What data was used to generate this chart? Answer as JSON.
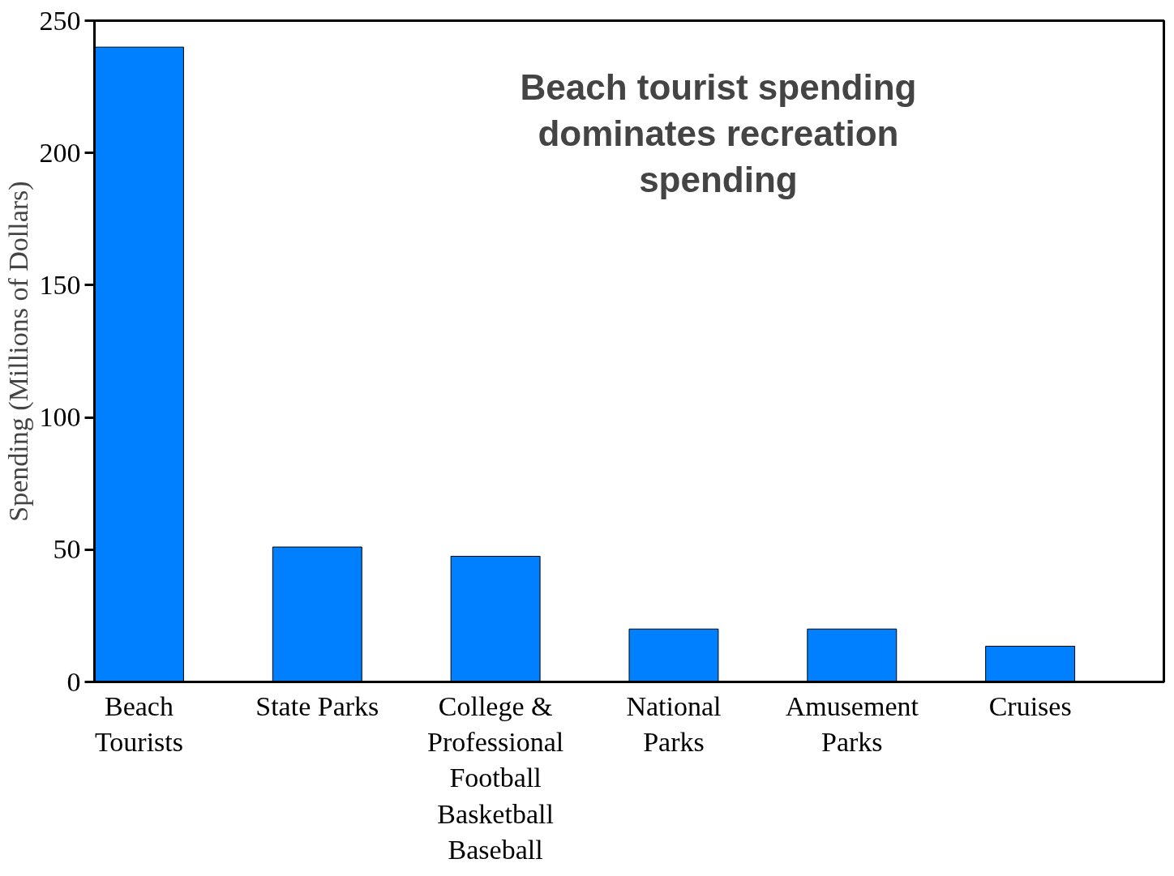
{
  "chart_data": {
    "type": "bar",
    "title": "Beach tourist spending dominates recreation spending",
    "ylabel": "Spending (Millions of Dollars)",
    "categories": [
      "Beach Tourists",
      "State Parks",
      "College & Professional Football Basketball Baseball",
      "National Parks",
      "Amusement Parks",
      "Cruises"
    ],
    "values": [
      240,
      51,
      47.5,
      20,
      20,
      13.5
    ],
    "color": "#0080ff",
    "ylim": [
      0,
      250
    ],
    "yticks": [
      0,
      50,
      100,
      150,
      200,
      250
    ],
    "grid": false
  }
}
